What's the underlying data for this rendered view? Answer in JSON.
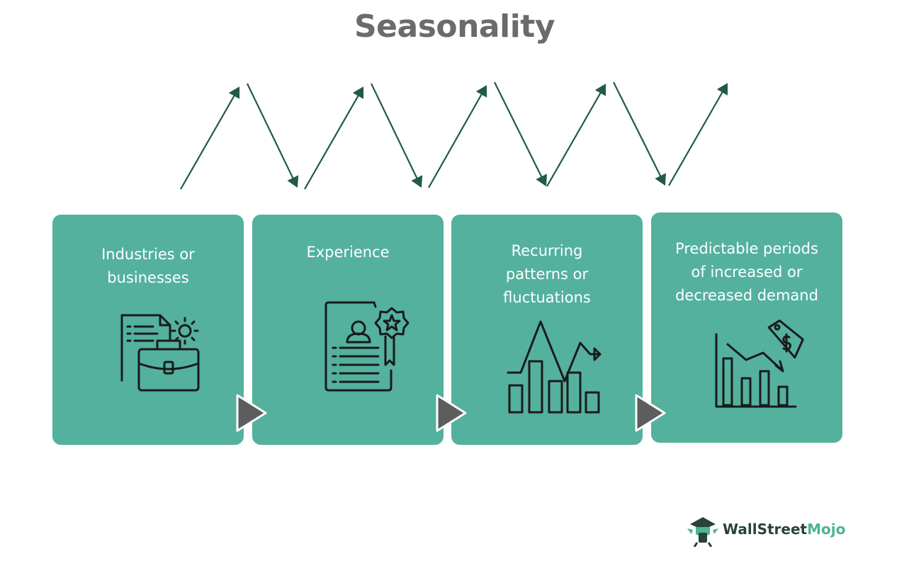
{
  "title": "Seasonality",
  "colors": {
    "box": "#54b19e",
    "arrow": "#1f5b4b",
    "connector": "#5d5d5d",
    "title": "#6b6b6b",
    "icon_stroke": "#1a1a1a",
    "logo_dark": "#28443a",
    "logo_green": "#4fb396"
  },
  "steps": [
    {
      "label": "Industries or\nbusinesses",
      "icon": "briefcase-document-icon"
    },
    {
      "label": "Experience",
      "icon": "resume-award-icon"
    },
    {
      "label": "Recurring\npatterns or\nfluctuations",
      "icon": "fluctuating-chart-icon"
    },
    {
      "label": "Predictable periods\nof increased or\ndecreased demand",
      "icon": "price-drop-chart-icon"
    }
  ],
  "logo": {
    "part1": "Wall",
    "part2": "Street",
    "part3": "Mojo",
    "icon": "wallstreetmojo-mascot-icon"
  }
}
